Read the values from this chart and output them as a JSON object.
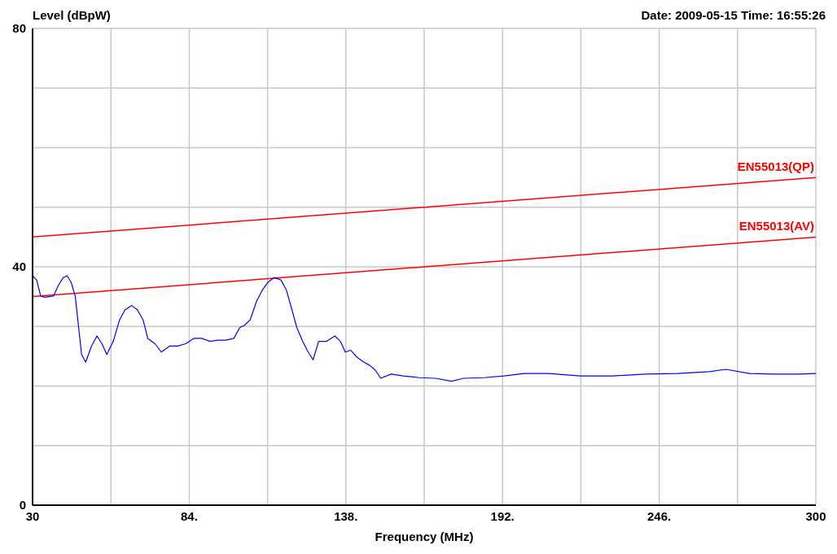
{
  "chart_data": {
    "type": "line",
    "ylabel": "Level (dBpW)",
    "xlabel": "Frequency (MHz)",
    "annotations": [
      "Date: 2009-05-15  Time: 16:55:26"
    ],
    "xlim": [
      30,
      300
    ],
    "xticks": [
      30,
      {
        "value": 57,
        "label": null
      },
      {
        "value": 84,
        "label": "84."
      },
      {
        "value": 111,
        "label": null
      },
      {
        "value": 138,
        "label": "138."
      },
      {
        "value": 165,
        "label": null
      },
      {
        "value": 192,
        "label": "192."
      },
      {
        "value": 219,
        "label": null
      },
      {
        "value": 246,
        "label": "246."
      },
      {
        "value": 273,
        "label": null
      },
      300
    ],
    "ylim": [
      0,
      80
    ],
    "yticks": [
      0,
      {
        "value": 10,
        "label": null
      },
      {
        "value": 20,
        "label": null
      },
      {
        "value": 30,
        "label": null
      },
      40,
      {
        "value": 50,
        "label": null
      },
      {
        "value": 60,
        "label": null
      },
      {
        "value": 70,
        "label": null
      },
      80
    ],
    "grid": true,
    "legend": false,
    "marker": "none",
    "line_style": "solid",
    "series": [
      {
        "name": "EN55013(QP)",
        "color": "#ff0000",
        "x": [
          30,
          300
        ],
        "values": [
          45,
          55
        ]
      },
      {
        "name": "EN55013(AV)",
        "color": "#ff0000",
        "x": [
          30,
          300
        ],
        "values": [
          35,
          45
        ]
      },
      {
        "color": "#0000ff",
        "x": [
          30,
          31.4,
          32.8,
          34.2,
          35.6,
          37.2,
          38.9,
          40.6,
          41.9,
          43.3,
          44.7,
          45.8,
          46.9,
          48.3,
          50.3,
          52.2,
          53.9,
          55.6,
          57.8,
          60,
          61.9,
          64.2,
          66.1,
          68.1,
          69.7,
          72.2,
          74.4,
          77.2,
          80,
          82.8,
          85.6,
          88.3,
          91.1,
          93.9,
          96.7,
          99.4,
          101.4,
          103.1,
          105,
          107.2,
          109.2,
          111.1,
          113.3,
          115.6,
          117.5,
          119.4,
          121.1,
          123.1,
          125,
          126.7,
          128.6,
          131.4,
          134.2,
          136.1,
          137.8,
          139.7,
          141.9,
          143.9,
          146.1,
          148.1,
          150,
          153.6,
          157.8,
          163.3,
          168.9,
          174.4,
          178.6,
          185.6,
          192.5,
          199.4,
          207.8,
          218.9,
          230,
          241.1,
          252.2,
          263.3,
          268.9,
          277.2,
          285.6,
          293.9,
          300
        ],
        "values": [
          38.5,
          37.8,
          35.1,
          34.9,
          35,
          35.1,
          36.9,
          38.2,
          38.5,
          37.4,
          35.1,
          30.2,
          25.3,
          24,
          26.7,
          28.4,
          27.1,
          25.3,
          27.5,
          31.1,
          32.8,
          33.5,
          32.8,
          31.1,
          28,
          27.1,
          25.7,
          26.7,
          26.7,
          27.1,
          28,
          28,
          27.5,
          27.7,
          27.7,
          28,
          29.8,
          30.2,
          31.1,
          34.2,
          36.1,
          37.4,
          38.2,
          37.8,
          36.1,
          32.8,
          29.8,
          27.5,
          25.7,
          24.4,
          27.5,
          27.5,
          28.4,
          27.5,
          25.7,
          26,
          24.8,
          24.1,
          23.5,
          22.7,
          21.3,
          22,
          21.7,
          21.4,
          21.3,
          20.8,
          21.3,
          21.4,
          21.7,
          22.1,
          22.1,
          21.7,
          21.7,
          22,
          22.1,
          22.4,
          22.8,
          22.1,
          22,
          22,
          22.1
        ]
      }
    ]
  }
}
